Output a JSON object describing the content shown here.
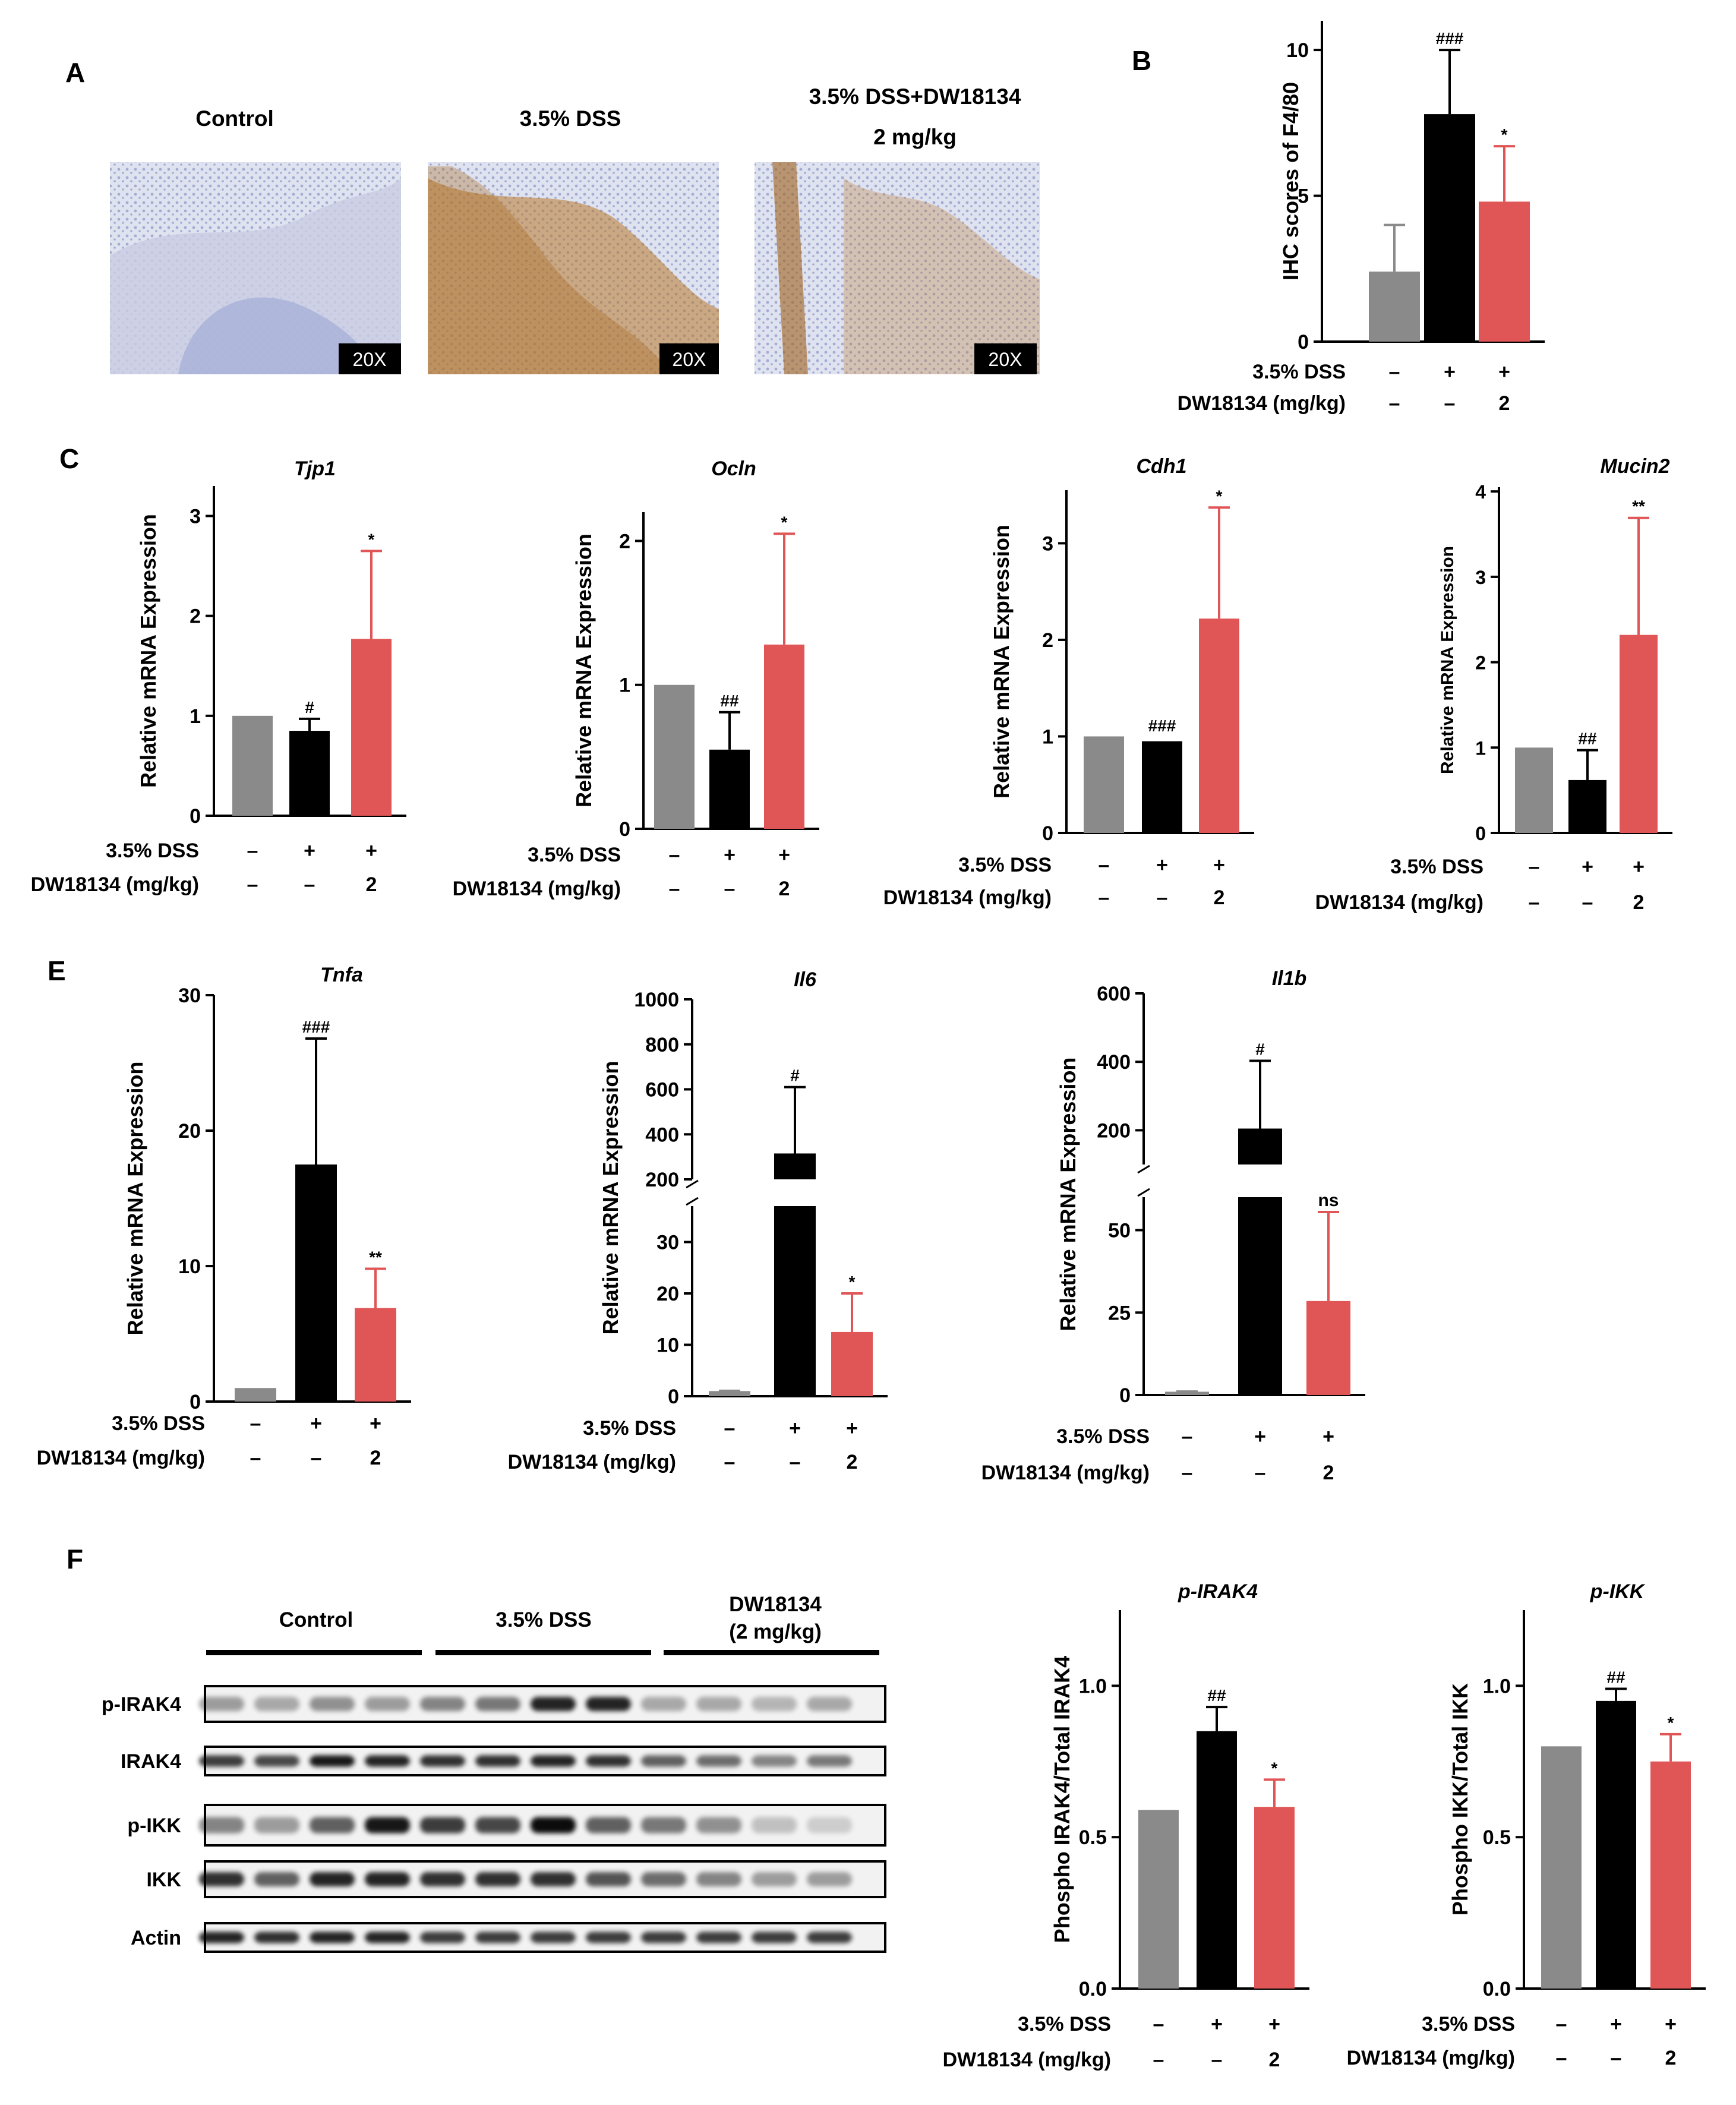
{
  "panels": {
    "A": {
      "letter": "A",
      "images": [
        {
          "title": "Control",
          "badge": "20X"
        },
        {
          "title": "3.5% DSS",
          "badge": "20X"
        },
        {
          "title_line1": "3.5% DSS+DW18134",
          "title_line2": "2 mg/kg",
          "badge": "20X"
        }
      ]
    },
    "B": {
      "letter": "B"
    },
    "C": {
      "letter": "C"
    },
    "E": {
      "letter": "E"
    },
    "F": {
      "letter": "F",
      "blot_groups": [
        "Control",
        "3.5% DSS",
        "DW18134",
        "(2 mg/kg)"
      ],
      "blot_rows": [
        "p-IRAK4",
        "IRAK4",
        "p-IKK",
        "IKK",
        "Actin"
      ]
    }
  },
  "colors": {
    "control": "#8a8a8a",
    "dss": "#000000",
    "treatment": "#e05555",
    "stain": "#b8782a",
    "tissue": "#8c96c8"
  },
  "chart_data": [
    {
      "id": "B",
      "type": "bar",
      "title": "",
      "ylabel": "IHC scores of F4/80",
      "ylim": [
        0,
        11
      ],
      "yticks": [
        0,
        5,
        10
      ],
      "groups": [
        "Control",
        "3.5% DSS",
        "3.5% DSS + DW18134"
      ],
      "values": [
        2.4,
        7.8,
        4.8
      ],
      "errors": [
        1.6,
        2.2,
        1.9
      ],
      "annotations": [
        "",
        "###",
        "*"
      ],
      "rows": [
        {
          "label": "3.5% DSS",
          "marks": [
            "–",
            "+",
            "+"
          ]
        },
        {
          "label": "DW18134 (mg/kg)",
          "marks": [
            "–",
            "–",
            "2"
          ]
        }
      ]
    },
    {
      "id": "C1",
      "type": "bar",
      "title": "Tjp1",
      "ylabel": "Relative mRNA Expression",
      "ylim": [
        0,
        3.3
      ],
      "yticks": [
        0,
        1,
        2,
        3
      ],
      "groups": [
        "Control",
        "3.5% DSS",
        "3.5% DSS + DW18134"
      ],
      "values": [
        1.0,
        0.85,
        1.77
      ],
      "errors": [
        0.01,
        0.12,
        0.88
      ],
      "annotations": [
        "",
        "#",
        "*"
      ],
      "rows": [
        {
          "label": "3.5% DSS",
          "marks": [
            "–",
            "+",
            "+"
          ]
        },
        {
          "label": "DW18134 (mg/kg)",
          "marks": [
            "–",
            "–",
            "2"
          ]
        }
      ]
    },
    {
      "id": "C2",
      "type": "bar",
      "title": "Ocln",
      "ylabel": "Relative mRNA Expression",
      "ylim": [
        0,
        2.2
      ],
      "yticks": [
        0,
        1,
        2
      ],
      "groups": [
        "Control",
        "3.5% DSS",
        "3.5% DSS + DW18134"
      ],
      "values": [
        1.0,
        0.55,
        1.28
      ],
      "errors": [
        0.01,
        0.26,
        0.77
      ],
      "annotations": [
        "",
        "##",
        "*"
      ],
      "rows": [
        {
          "label": "3.5% DSS",
          "marks": [
            "–",
            "+",
            "+"
          ]
        },
        {
          "label": "DW18134 (mg/kg)",
          "marks": [
            "–",
            "–",
            "2"
          ]
        }
      ]
    },
    {
      "id": "C3",
      "type": "bar",
      "title": "Cdh1",
      "ylabel": "Relative mRNA Expression",
      "ylim": [
        0,
        3.55
      ],
      "yticks": [
        0,
        1,
        2,
        3
      ],
      "groups": [
        "Control",
        "3.5% DSS",
        "3.5% DSS + DW18134"
      ],
      "values": [
        1.0,
        0.95,
        2.22
      ],
      "errors": [
        0.01,
        0.04,
        1.15
      ],
      "annotations": [
        "",
        "###",
        "*"
      ],
      "rows": [
        {
          "label": "3.5% DSS",
          "marks": [
            "–",
            "+",
            "+"
          ]
        },
        {
          "label": "DW18134 (mg/kg)",
          "marks": [
            "–",
            "–",
            "2"
          ]
        }
      ]
    },
    {
      "id": "C4",
      "type": "bar",
      "title": "Mucin2",
      "ylabel": "Relative mRNA Expression",
      "ylim": [
        0,
        4.05
      ],
      "yticks": [
        0,
        1,
        2,
        3,
        4
      ],
      "groups": [
        "Control",
        "3.5% DSS",
        "3.5% DSS + DW18134"
      ],
      "values": [
        1.0,
        0.62,
        2.32
      ],
      "errors": [
        0.01,
        0.35,
        1.37
      ],
      "annotations": [
        "",
        "##",
        "**"
      ],
      "rows": [
        {
          "label": "3.5% DSS",
          "marks": [
            "–",
            "+",
            "+"
          ]
        },
        {
          "label": "DW18134 (mg/kg)",
          "marks": [
            "–",
            "–",
            "2"
          ]
        }
      ]
    },
    {
      "id": "E1",
      "type": "bar",
      "title": "Tnfa",
      "ylabel": "Relative mRNA Expression",
      "ylim": [
        0,
        30
      ],
      "yticks": [
        0,
        10,
        20,
        30
      ],
      "groups": [
        "Control",
        "3.5% DSS",
        "3.5% DSS + DW18134"
      ],
      "values": [
        1.0,
        17.5,
        6.9
      ],
      "errors": [
        0.05,
        9.3,
        2.9
      ],
      "annotations": [
        "",
        "###",
        "**"
      ],
      "rows": [
        {
          "label": "3.5% DSS",
          "marks": [
            "–",
            "+",
            "+"
          ]
        },
        {
          "label": "DW18134 (mg/kg)",
          "marks": [
            "–",
            "–",
            "2"
          ]
        }
      ]
    },
    {
      "id": "E2",
      "type": "bar",
      "title": "Il6",
      "ylabel": "Relative mRNA Expression",
      "axis_break": true,
      "ylim_lower": [
        0,
        37
      ],
      "ylim_upper": [
        200,
        1000
      ],
      "yticks_lower": [
        0,
        10,
        20,
        30
      ],
      "yticks_upper": [
        200,
        400,
        600,
        800,
        1000
      ],
      "groups": [
        "Control",
        "3.5% DSS",
        "3.5% DSS + DW18134"
      ],
      "values": [
        1.0,
        315,
        12.5
      ],
      "errors": [
        0.05,
        295,
        7.5
      ],
      "annotations": [
        "",
        "#",
        "*"
      ],
      "rows": [
        {
          "label": "3.5% DSS",
          "marks": [
            "–",
            "+",
            "+"
          ]
        },
        {
          "label": "DW18134 (mg/kg)",
          "marks": [
            "–",
            "–",
            "2"
          ]
        }
      ]
    },
    {
      "id": "E3",
      "type": "bar",
      "title": "Il1b",
      "ylabel": "Relative mRNA Expression",
      "axis_break": true,
      "ylim_lower": [
        0,
        60
      ],
      "ylim_upper": [
        100,
        600
      ],
      "yticks_lower": [
        0,
        25,
        50
      ],
      "yticks_upper": [
        200,
        400,
        600
      ],
      "groups": [
        "Control",
        "3.5% DSS",
        "3.5% DSS + DW18134"
      ],
      "values": [
        1.0,
        205,
        28.5
      ],
      "errors": [
        0.05,
        198,
        27
      ],
      "annotations": [
        "",
        "#",
        "ns"
      ],
      "rows": [
        {
          "label": "3.5% DSS",
          "marks": [
            "–",
            "+",
            "+"
          ]
        },
        {
          "label": "DW18134 (mg/kg)",
          "marks": [
            "–",
            "–",
            "2"
          ]
        }
      ]
    },
    {
      "id": "F1",
      "type": "bar",
      "title": "p-IRAK4",
      "ylabel": "Phospho IRAK4/Total IRAK4",
      "ylim": [
        0,
        1.25
      ],
      "yticks": [
        0.0,
        0.5,
        1.0
      ],
      "groups": [
        "Control",
        "3.5% DSS",
        "3.5% DSS + DW18134"
      ],
      "values": [
        0.59,
        0.85,
        0.6
      ],
      "errors": [
        0.005,
        0.08,
        0.09
      ],
      "annotations": [
        "",
        "##",
        "*"
      ],
      "rows": [
        {
          "label": "3.5% DSS",
          "marks": [
            "–",
            "+",
            "+"
          ]
        },
        {
          "label": "DW18134 (mg/kg)",
          "marks": [
            "–",
            "–",
            "2"
          ]
        }
      ]
    },
    {
      "id": "F2",
      "type": "bar",
      "title": "p-IKK",
      "ylabel": "Phospho IKK/Total IKK",
      "ylim": [
        0,
        1.25
      ],
      "yticks": [
        0.0,
        0.5,
        1.0
      ],
      "groups": [
        "Control",
        "3.5% DSS",
        "3.5% DSS + DW18134"
      ],
      "values": [
        0.8,
        0.95,
        0.75
      ],
      "errors": [
        0.015,
        0.04,
        0.09
      ],
      "annotations": [
        "",
        "##",
        "*"
      ],
      "rows": [
        {
          "label": "3.5% DSS",
          "marks": [
            "–",
            "+",
            "+"
          ]
        },
        {
          "label": "DW18134 (mg/kg)",
          "marks": [
            "–",
            "–",
            "2"
          ]
        }
      ]
    }
  ]
}
